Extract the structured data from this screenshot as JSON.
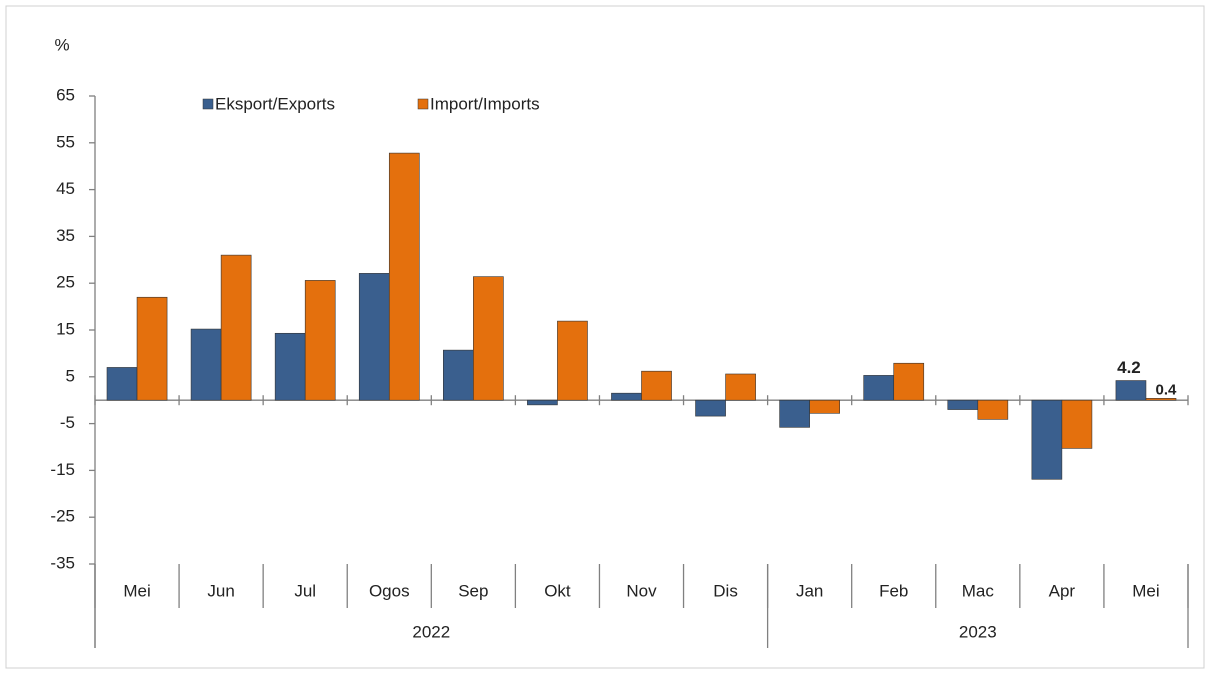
{
  "chart_data": {
    "type": "bar",
    "y_label": "%",
    "groups": [
      {
        "name": "2022",
        "categories": [
          "Mei",
          "Jun",
          "Jul",
          "Ogos",
          "Sep",
          "Okt",
          "Nov",
          "Dis"
        ]
      },
      {
        "name": "2023",
        "categories": [
          "Jan",
          "Feb",
          "Mac",
          "Apr",
          "Mei"
        ]
      }
    ],
    "series": [
      {
        "name": "Eksport/Exports",
        "color": "#3a5f8e",
        "values": [
          7.0,
          15.2,
          14.3,
          27.1,
          10.7,
          -1.0,
          1.5,
          -3.4,
          -5.8,
          5.3,
          -2.0,
          -16.9,
          4.2
        ]
      },
      {
        "name": "Import/Imports",
        "color": "#e4700d",
        "values": [
          22.0,
          31.0,
          25.6,
          52.8,
          26.4,
          16.9,
          6.2,
          5.6,
          -2.8,
          7.9,
          -4.1,
          -10.3,
          0.4
        ]
      }
    ],
    "data_labels": "last",
    "ylim": [
      -35,
      65
    ],
    "yticks": [
      -35,
      -25,
      -15,
      -5,
      5,
      15,
      25,
      35,
      45,
      55,
      65
    ],
    "legend": "top"
  }
}
